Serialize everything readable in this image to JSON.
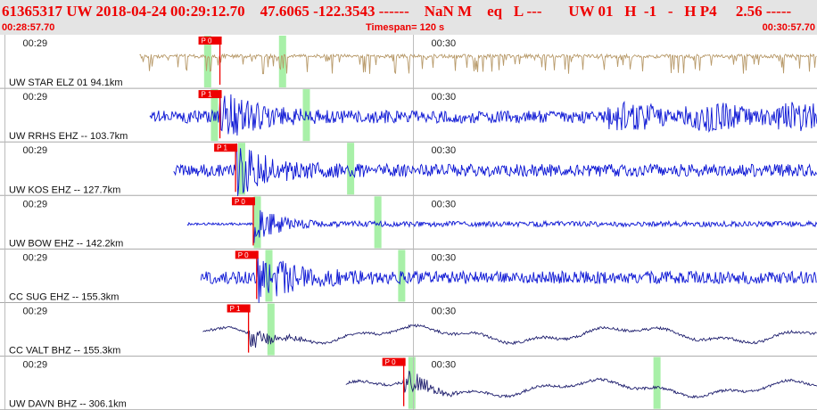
{
  "header": {
    "title": "61365317 UW 2018-04-24 00:29:12.70    47.6065 -122.3543 ------    NaN M    eq   L ---       UW 01   H  -1   -   H P4     2.56 -----",
    "start_time": "00:28:57.70",
    "timespan": "Timespan= 120 s",
    "end_time": "00:30:57.70"
  },
  "colors": {
    "header_bg": "#e4e4e4",
    "header_text": "#ee0000",
    "trace_tan": "#b89a6a",
    "trace_blue": "#0a14d4",
    "trace_navy": "#1f1f6e",
    "pick": "#ee0000",
    "marker": "#a8f0a8",
    "grid": "#a8a8a8"
  },
  "time_labels": [
    "00:29",
    "00:30"
  ],
  "chart_data": {
    "type": "seismogram",
    "x_range_s": [
      0,
      120
    ],
    "minute_ticks_s": [
      2.3,
      62.3
    ],
    "channels": [
      {
        "label": "UW STAR ELZ 01 94.1km",
        "color": "tan",
        "start_s": 20.5,
        "pick_s": 32.3,
        "pick_label": "P 0",
        "markers_s": [
          30.5,
          41.5
        ]
      },
      {
        "label": "UW RRHS EHZ -- 103.7km",
        "color": "blue",
        "start_s": 22.0,
        "pick_s": 32.3,
        "pick_label": "P 1",
        "markers_s": [
          31.5,
          45.0
        ]
      },
      {
        "label": "UW KOS EHZ -- 127.7km",
        "color": "blue",
        "start_s": 25.5,
        "pick_s": 34.6,
        "pick_label": "P 1",
        "markers_s": [
          35.5,
          51.5
        ]
      },
      {
        "label": "UW BOW EHZ -- 142.2km",
        "color": "blue",
        "start_s": 27.5,
        "pick_s": 37.2,
        "pick_label": "P 0",
        "markers_s": [
          37.8,
          55.5
        ]
      },
      {
        "label": "CC SUG EHZ -- 155.3km",
        "color": "blue",
        "start_s": 29.5,
        "pick_s": 37.7,
        "pick_label": "P 0",
        "markers_s": [
          39.5,
          59.0
        ]
      },
      {
        "label": "CC VALT BHZ -- 155.3km",
        "color": "navy",
        "start_s": 29.8,
        "pick_s": 36.5,
        "pick_label": "P 1",
        "markers_s": [
          39.8
        ]
      },
      {
        "label": "UW DAVN BHZ -- 306.1km",
        "color": "navy",
        "start_s": 50.8,
        "pick_s": 59.3,
        "pick_label": "P 0",
        "markers_s": [
          60.5,
          96.5
        ]
      }
    ]
  }
}
